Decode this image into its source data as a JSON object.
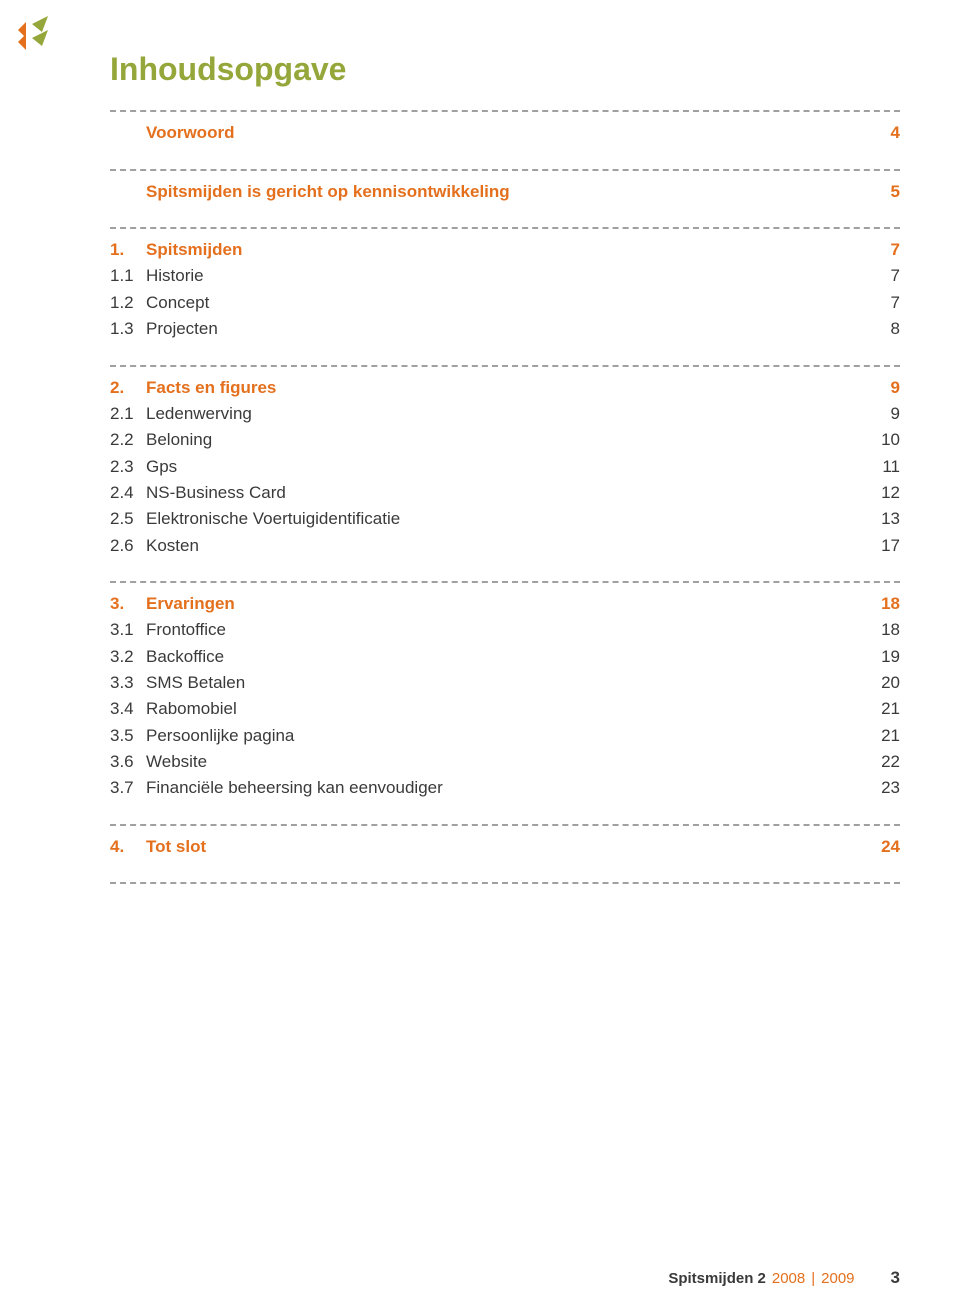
{
  "colors": {
    "title": "#95a63a",
    "accent": "#e4701e",
    "body": "#3a3a3a",
    "dash": "#a0a0a0",
    "footer_year": "#e4701e",
    "footer_text": "#3a3a3a"
  },
  "typography": {
    "title_fontsize": 32,
    "row_fontsize": 17,
    "heading_weight": 700
  },
  "title": "Inhoudsopgave",
  "sections": [
    {
      "heading": {
        "num": "",
        "label": "Voorwoord",
        "page": "4",
        "color_key": "accent"
      },
      "items": []
    },
    {
      "heading": {
        "num": "",
        "label": "Spitsmijden is gericht op kennisontwikkeling",
        "page": "5",
        "color_key": "accent"
      },
      "items": []
    },
    {
      "heading": {
        "num": "1.",
        "label": "Spitsmijden",
        "page": "7",
        "color_key": "accent"
      },
      "items": [
        {
          "num": "1.1",
          "label": "Historie",
          "page": "7"
        },
        {
          "num": "1.2",
          "label": "Concept",
          "page": "7"
        },
        {
          "num": "1.3",
          "label": "Projecten",
          "page": "8"
        }
      ]
    },
    {
      "heading": {
        "num": "2.",
        "label": "Facts en figures",
        "page": "9",
        "color_key": "accent"
      },
      "items": [
        {
          "num": "2.1",
          "label": "Ledenwerving",
          "page": "9"
        },
        {
          "num": "2.2",
          "label": "Beloning",
          "page": "10"
        },
        {
          "num": "2.3",
          "label": "Gps",
          "page": "11"
        },
        {
          "num": "2.4",
          "label": "NS-Business Card",
          "page": "12"
        },
        {
          "num": "2.5",
          "label": "Elektronische Voertuigidentificatie",
          "page": "13"
        },
        {
          "num": "2.6",
          "label": "Kosten",
          "page": "17"
        }
      ]
    },
    {
      "heading": {
        "num": "3.",
        "label": "Ervaringen",
        "page": "18",
        "color_key": "accent"
      },
      "items": [
        {
          "num": "3.1",
          "label": "Frontoffice",
          "page": "18"
        },
        {
          "num": "3.2",
          "label": "Backoffice",
          "page": "19"
        },
        {
          "num": "3.3",
          "label": "SMS Betalen",
          "page": "20"
        },
        {
          "num": "3.4",
          "label": "Rabomobiel",
          "page": "21"
        },
        {
          "num": "3.5",
          "label": "Persoonlijke pagina",
          "page": "21"
        },
        {
          "num": "3.6",
          "label": "Website",
          "page": "22"
        },
        {
          "num": "3.7",
          "label": "Financiële beheersing kan eenvoudiger",
          "page": "23"
        }
      ]
    },
    {
      "heading": {
        "num": "4.",
        "label": "Tot slot",
        "page": "24",
        "color_key": "accent"
      },
      "items": []
    }
  ],
  "trailing_separator": true,
  "footer": {
    "prefix_bold": "Spitsmijden 2",
    "year1": "2008",
    "sep": "|",
    "year2": "2009",
    "folio": "3"
  }
}
